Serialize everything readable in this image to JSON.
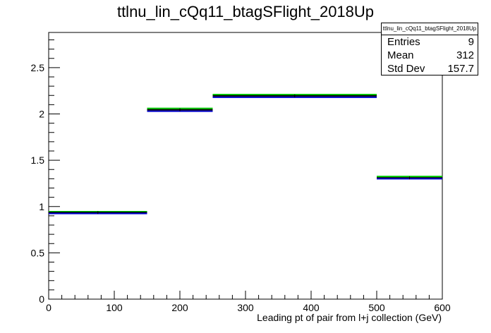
{
  "title": "ttlnu_lin_cQq11_btagSFlight_2018Up",
  "stats": {
    "header": "ttlnu_lin_cQq11_btagSFlight_2018Up",
    "entries_label": "Entries",
    "entries_value": "9",
    "mean_label": "Mean",
    "mean_value": "312",
    "stddev_label": "Std Dev",
    "stddev_value": "157.7"
  },
  "chart_data": {
    "type": "histogram",
    "title": "ttlnu_lin_cQq11_btagSFlight_2018Up",
    "xlabel": "Leading pt of pair from l+j collection (GeV)",
    "ylabel": "",
    "xlim": [
      0,
      600
    ],
    "ylim": [
      0,
      2.88
    ],
    "x_ticks": [
      "0",
      "100",
      "200",
      "300",
      "400",
      "500",
      "600"
    ],
    "y_ticks": [
      "0",
      "0.5",
      "1",
      "1.5",
      "2",
      "2.5"
    ],
    "bins": [
      [
        0,
        150
      ],
      [
        150,
        250
      ],
      [
        250,
        500
      ],
      [
        500,
        600
      ]
    ],
    "series": [
      {
        "color": "#00cc00",
        "values": [
          0.945,
          2.06,
          2.21,
          1.325
        ]
      },
      {
        "color": "#000000",
        "values": [
          0.935,
          2.045,
          2.195,
          1.31
        ]
      },
      {
        "color": "#0000cc",
        "values": [
          0.925,
          2.03,
          2.18,
          1.3
        ]
      }
    ],
    "grid": false
  }
}
